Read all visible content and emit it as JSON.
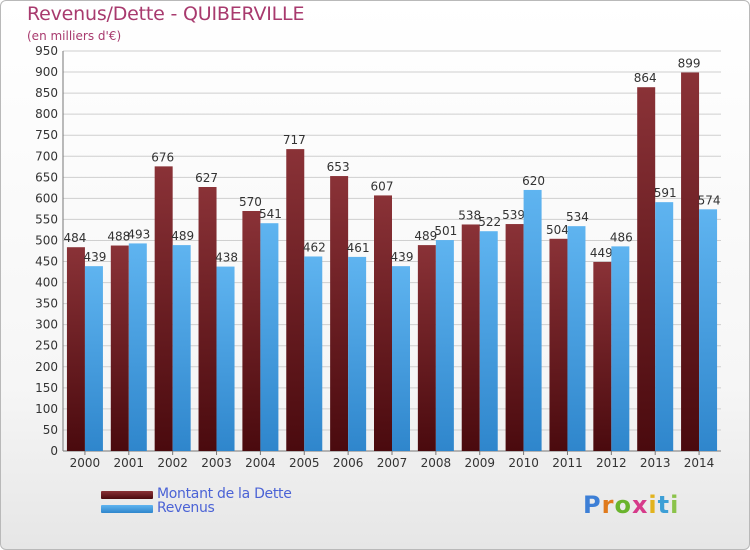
{
  "header": {
    "title": "Revenus/Dette - QUIBERVILLE",
    "subtitle": "(en milliers d'€)"
  },
  "colors": {
    "dette": "#6e1a1e",
    "revenus": "#4aa3e4",
    "title": "#a83a6e",
    "legend_text": "#4b63d6",
    "grid": "#cfcfcf",
    "axis_text": "#333333"
  },
  "chart_data": {
    "type": "bar",
    "categories": [
      "2000",
      "2001",
      "2002",
      "2003",
      "2004",
      "2005",
      "2006",
      "2007",
      "2008",
      "2009",
      "2010",
      "2011",
      "2012",
      "2013",
      "2014"
    ],
    "series": [
      {
        "name": "Montant de la Dette",
        "values": [
          484,
          488,
          676,
          627,
          570,
          717,
          653,
          607,
          489,
          538,
          539,
          504,
          449,
          864,
          899
        ]
      },
      {
        "name": "Revenus",
        "values": [
          439,
          493,
          489,
          438,
          541,
          462,
          461,
          439,
          501,
          522,
          620,
          534,
          486,
          591,
          574
        ]
      }
    ],
    "ylim": [
      0,
      950
    ],
    "yticks": [
      0,
      50,
      100,
      150,
      200,
      250,
      300,
      350,
      400,
      450,
      500,
      550,
      600,
      650,
      700,
      750,
      800,
      850,
      900,
      950
    ],
    "grid": true,
    "legend": "bottom-left"
  },
  "legend": {
    "dette_label": "Montant de la Dette",
    "revenus_label": "Revenus"
  },
  "brand": {
    "letters": [
      "P",
      "r",
      "o",
      "x",
      "i",
      "t",
      "i"
    ],
    "colors": [
      "#3d7fd6",
      "#e07a1c",
      "#6ab42d",
      "#d63a8a",
      "#e2b31e",
      "#3d9fd6",
      "#8bc34a"
    ]
  }
}
